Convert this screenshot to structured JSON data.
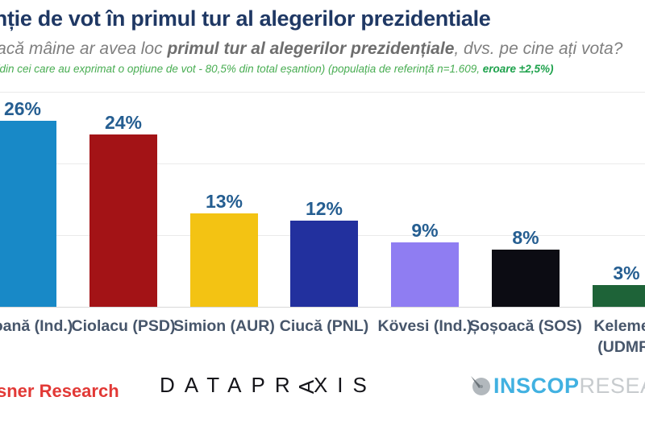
{
  "header": {
    "title": "Intenție de vot în primul tur al alegerilor prezidentiale",
    "subtitle_prefix": "Dacă mâine ar avea loc ",
    "subtitle_bold": "primul tur al alegerilor prezidențiale",
    "subtitle_suffix": ", dvs. pe cine ați vota?",
    "note_regular": "(din cei care au exprimat o opțiune de vot  - 80,5% din total eșantion) (populația de referință n=1.609, ",
    "note_bold": "eroare ±2,5%)"
  },
  "chart_data": {
    "type": "bar",
    "categories": [
      "Geoană (Ind.)",
      "Ciolacu (PSD)",
      "Simion (AUR)",
      "Ciucă (PNL)",
      "Kövesi (Ind.)",
      "Șoșoacă (SOS)",
      "Kelemen (UDMR)"
    ],
    "values": [
      26,
      24,
      13,
      12,
      9,
      8,
      3
    ],
    "value_labels": [
      "26%",
      "24%",
      "13%",
      "12%",
      "9%",
      "8%",
      "3%"
    ],
    "bar_colors": [
      "#1889C7",
      "#A31316",
      "#F3C313",
      "#22309E",
      "#8F7DF2",
      "#0C0C13",
      "#1E6338"
    ],
    "category_wrap": [
      false,
      false,
      false,
      false,
      false,
      false,
      true
    ],
    "title": "Intenție de vot în primul tur al alegerilor prezidentiale",
    "xlabel": "",
    "ylabel": "",
    "ylim": [
      0,
      30
    ],
    "gridlines_pct": [
      10,
      20,
      30
    ],
    "grid": "horizontal-light",
    "legend": "none",
    "value_label_color": "#255E91",
    "category_label_color": "#47566B"
  },
  "footer": {
    "left_logo_text": "sner Research",
    "left_logo_color": "#E23936",
    "center_logo_prefix": "DATAPR",
    "center_logo_rotated_letter": "A",
    "center_logo_suffix": "XIS",
    "right_logo_icon": "compass-circle-icon",
    "right_logo_primary": "INSCOP",
    "right_logo_secondary": "RESEARCH",
    "right_logo_primary_color": "#41B1E1",
    "right_logo_secondary_color": "#C7CBCE"
  }
}
